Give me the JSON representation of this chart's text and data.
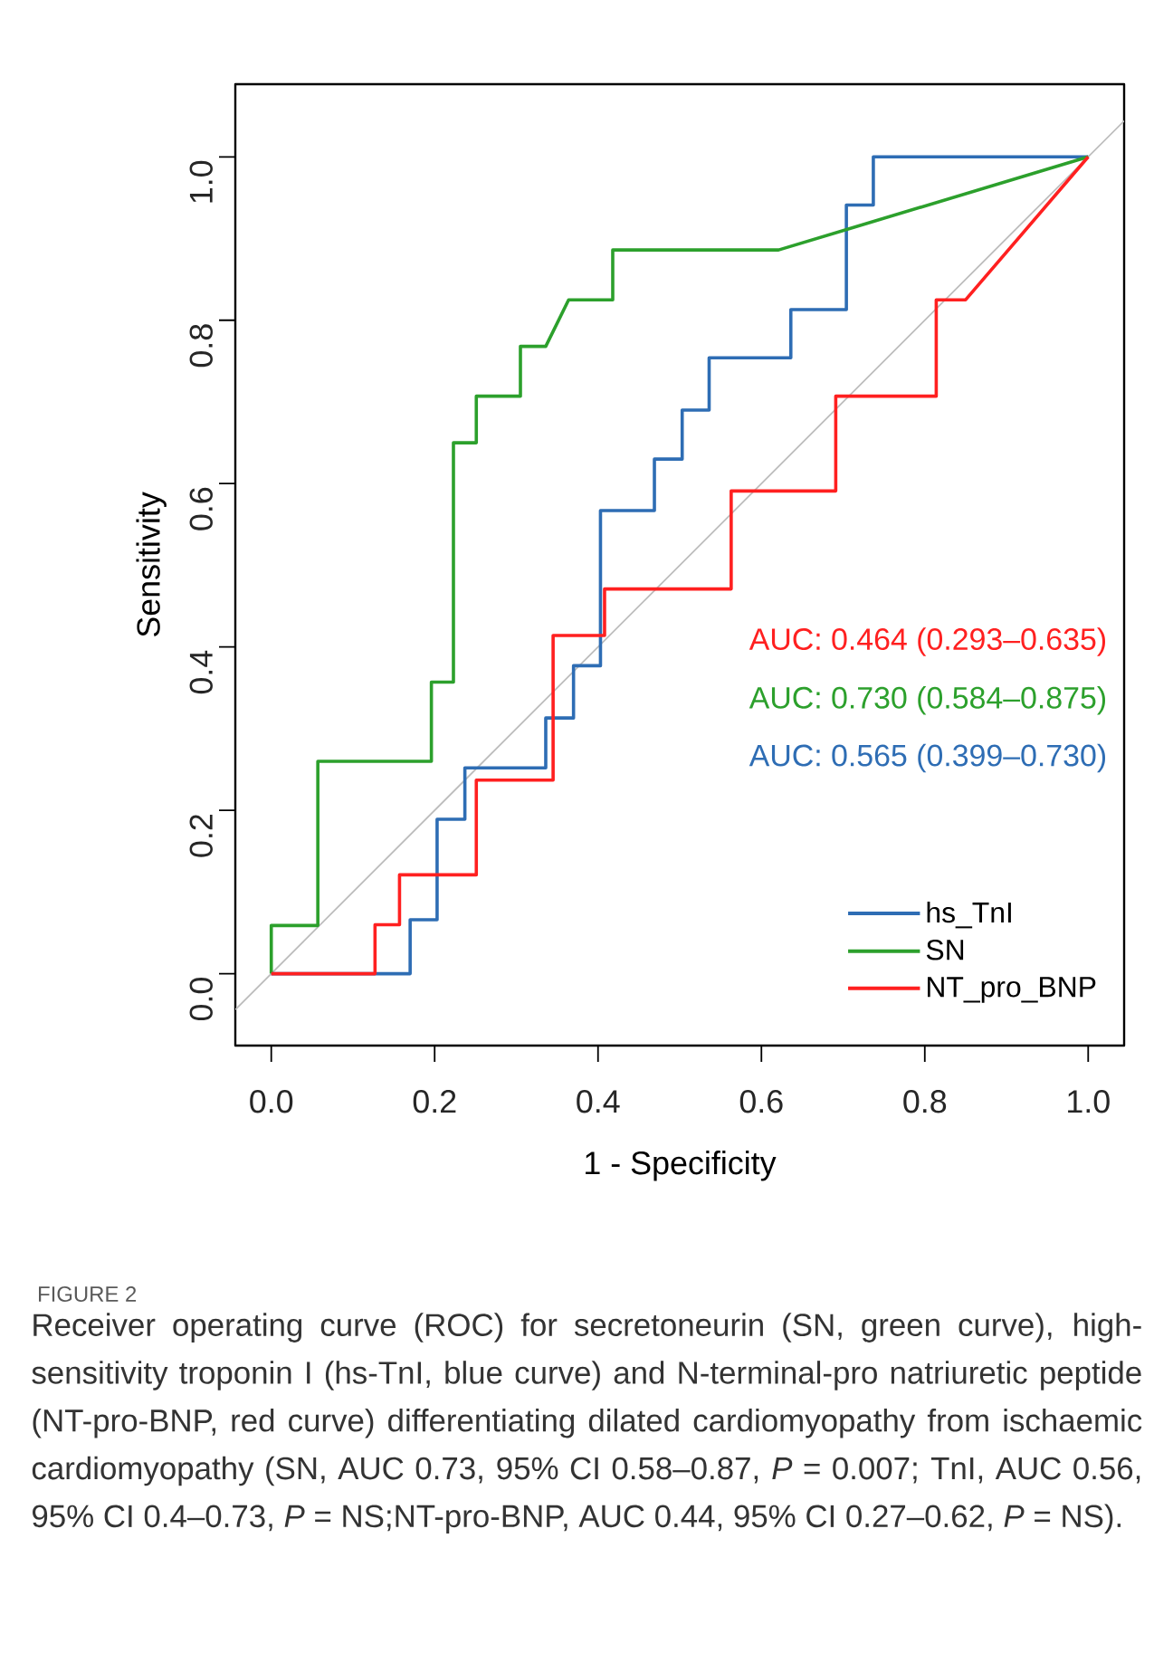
{
  "chart_data": {
    "type": "line",
    "xlabel": "1 - Specificity",
    "ylabel": "Sensitivity",
    "xlim": [
      -0.044,
      1.044
    ],
    "ylim": [
      -0.088,
      1.089
    ],
    "xticks": [
      {
        "value": 0,
        "label": "0.0"
      },
      {
        "value": 0.2,
        "label": "0.2"
      },
      {
        "value": 0.4,
        "label": "0.4"
      },
      {
        "value": 0.6,
        "label": "0.6"
      },
      {
        "value": 0.8,
        "label": "0.8"
      },
      {
        "value": 1,
        "label": "1.0"
      }
    ],
    "yticks": [
      {
        "value": 0,
        "label": "0.0"
      },
      {
        "value": 0.2,
        "label": "0.2"
      },
      {
        "value": 0.4,
        "label": "0.4"
      },
      {
        "value": 0.6,
        "label": "0.6"
      },
      {
        "value": 0.8,
        "label": "0.8"
      },
      {
        "value": 1,
        "label": "1.0"
      }
    ],
    "series": [
      {
        "type": "line",
        "color": "#bdbdbd",
        "x": [
          -0.044,
          1.044
        ],
        "values": [
          -0.044,
          1.044
        ]
      },
      {
        "name": "hs_TnI",
        "color": "#2e6db4",
        "x": [
          0,
          0.17,
          0.17,
          0.203,
          0.203,
          0.237,
          0.237,
          0.336,
          0.336,
          0.37,
          0.37,
          0.403,
          0.403,
          0.469,
          0.469,
          0.503,
          0.503,
          0.536,
          0.536,
          0.636,
          0.636,
          0.704,
          0.704,
          0.737,
          0.737,
          1
        ],
        "values": [
          0,
          0,
          0.066,
          0.066,
          0.189,
          0.189,
          0.252,
          0.252,
          0.313,
          0.313,
          0.377,
          0.377,
          0.567,
          0.567,
          0.63,
          0.63,
          0.69,
          0.69,
          0.754,
          0.754,
          0.813,
          0.813,
          0.941,
          0.941,
          1,
          1
        ]
      },
      {
        "name": "SN",
        "color": "#2ca02c",
        "x": [
          0,
          0,
          0.057,
          0.057,
          0.196,
          0.196,
          0.223,
          0.223,
          0.251,
          0.251,
          0.305,
          0.305,
          0.336,
          0.364,
          0.418,
          0.418,
          0.621,
          1
        ],
        "values": [
          0,
          0.059,
          0.059,
          0.26,
          0.26,
          0.357,
          0.357,
          0.65,
          0.65,
          0.707,
          0.707,
          0.768,
          0.768,
          0.825,
          0.825,
          0.886,
          0.886,
          1
        ]
      },
      {
        "name": "NT_pro_BNP",
        "color": "#ff2020",
        "x": [
          0,
          0.127,
          0.127,
          0.157,
          0.157,
          0.251,
          0.251,
          0.345,
          0.345,
          0.408,
          0.408,
          0.563,
          0.563,
          0.691,
          0.691,
          0.814,
          0.814,
          0.85,
          1
        ],
        "values": [
          0,
          0,
          0.06,
          0.06,
          0.121,
          0.121,
          0.237,
          0.237,
          0.414,
          0.414,
          0.471,
          0.471,
          0.591,
          0.591,
          0.707,
          0.707,
          0.825,
          0.825,
          1
        ]
      }
    ],
    "annotations": [
      "AUC: 0.464 (0.293–0.635)",
      "AUC: 0.730 (0.584–0.875)",
      "AUC: 0.565 (0.399–0.730)",
      "FIGURE 2",
      "Receiver operating curve (ROC) for secretoneurin (SN, green curve), high-sensitivity troponin I (hs-TnI, blue curve) and N-terminal-pro natriuretic peptide (NT-pro-BNP, red curve) differentiating dilated cardiomyopathy from ischaemic cardiomyopathy (SN, AUC 0.73, 95% CI 0.58–0.87, *P* = 0.007; TnI, AUC 0.56, 95% CI 0.4–0.73, *P* = NS;NT-pro-BNP, AUC 0.44, 95% CI 0.27–0.62, *P* = NS)."
    ],
    "legend": "bottom right",
    "grid": false,
    "marker": "none",
    "line_style": "solid"
  }
}
